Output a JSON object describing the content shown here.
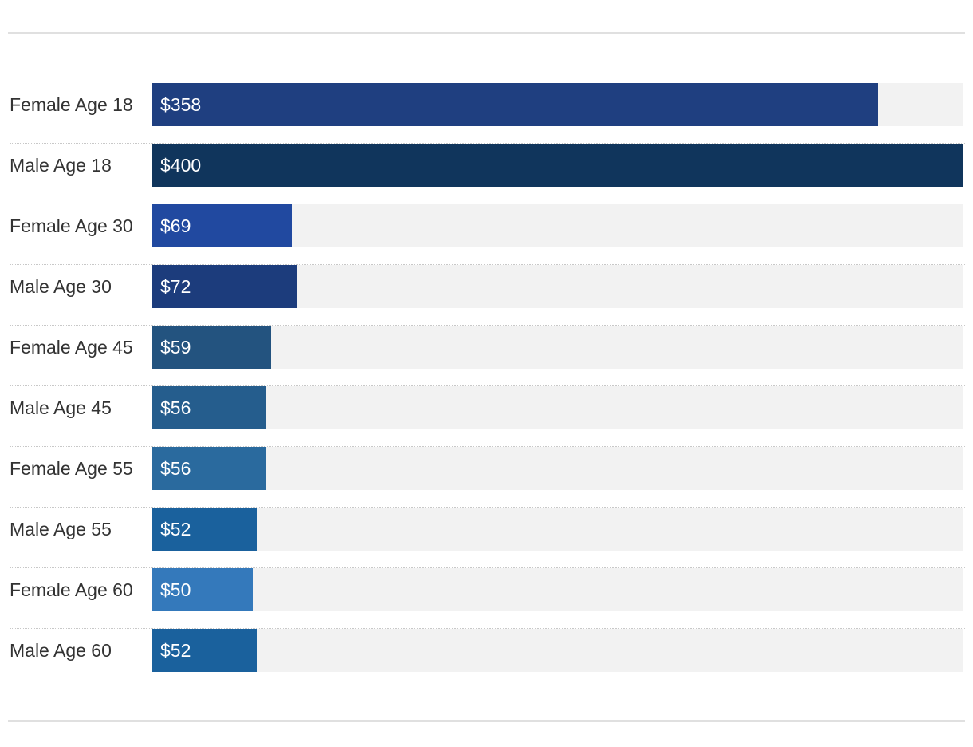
{
  "chart_data": {
    "type": "bar",
    "orientation": "horizontal",
    "categories": [
      "Female Age 18",
      "Male Age 18",
      "Female Age 30",
      "Male Age 30",
      "Female Age 45",
      "Male Age 45",
      "Female Age 55",
      "Male Age 55",
      "Female Age 60",
      "Male Age 60"
    ],
    "values": [
      358,
      400,
      69,
      72,
      59,
      56,
      56,
      52,
      50,
      52
    ],
    "value_labels": [
      "$358",
      "$400",
      "$69",
      "$72",
      "$59",
      "$56",
      "$56",
      "$52",
      "$50",
      "$52"
    ],
    "colors": [
      "#1f3f80",
      "#10355c",
      "#2149a0",
      "#1c3c7c",
      "#23537f",
      "#255d8d",
      "#2a6a9e",
      "#1a619d",
      "#3479bb",
      "#1a619d"
    ],
    "track_color": "#f2f2f2",
    "xlim": [
      0,
      400
    ],
    "grid": false,
    "legend": "none"
  }
}
